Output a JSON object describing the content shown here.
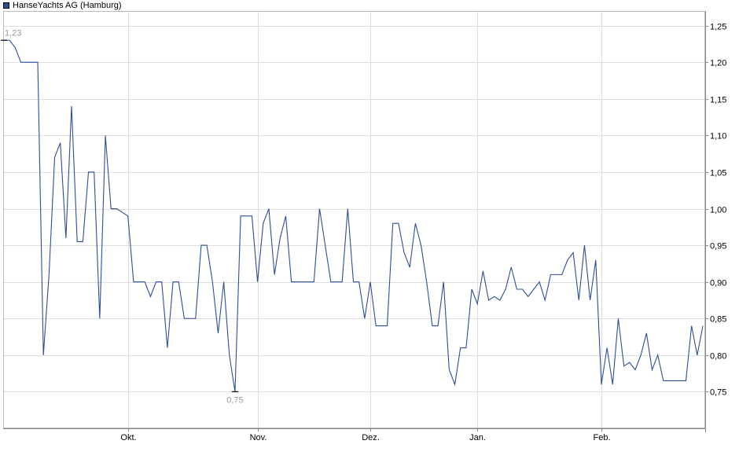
{
  "chart_data": {
    "type": "line",
    "legend": "top-left",
    "grid": true,
    "series": [
      {
        "name": "HanseYachts AG (Hamburg)",
        "color": "#2a4f9a",
        "values": [
          1.23,
          1.23,
          1.22,
          1.2,
          1.2,
          1.2,
          1.2,
          0.8,
          0.91,
          1.07,
          1.09,
          0.96,
          1.14,
          0.955,
          0.955,
          1.05,
          1.05,
          0.85,
          1.1,
          1.0,
          1.0,
          0.995,
          0.99,
          0.9,
          0.9,
          0.9,
          0.88,
          0.9,
          0.9,
          0.81,
          0.9,
          0.9,
          0.85,
          0.85,
          0.85,
          0.95,
          0.95,
          0.9,
          0.83,
          0.9,
          0.8,
          0.75,
          0.99,
          0.99,
          0.99,
          0.9,
          0.98,
          1.0,
          0.91,
          0.96,
          0.99,
          0.9,
          0.9,
          0.9,
          0.9,
          0.9,
          1.0,
          0.95,
          0.9,
          0.9,
          0.9,
          1.0,
          0.9,
          0.9,
          0.85,
          0.9,
          0.84,
          0.84,
          0.84,
          0.98,
          0.98,
          0.94,
          0.92,
          0.98,
          0.95,
          0.9,
          0.84,
          0.84,
          0.9,
          0.78,
          0.76,
          0.81,
          0.81,
          0.89,
          0.87,
          0.915,
          0.875,
          0.88,
          0.875,
          0.89,
          0.92,
          0.89,
          0.89,
          0.88,
          0.89,
          0.9,
          0.875,
          0.91,
          0.91,
          0.91,
          0.93,
          0.94,
          0.875,
          0.95,
          0.875,
          0.93,
          0.76,
          0.81,
          0.76,
          0.85,
          0.785,
          0.79,
          0.78,
          0.8,
          0.83,
          0.78,
          0.8,
          0.765,
          0.765,
          0.765,
          0.765,
          0.765,
          0.84,
          0.8,
          0.84
        ]
      }
    ],
    "y_ticks": [
      0.75,
      0.8,
      0.85,
      0.9,
      0.95,
      1.0,
      1.05,
      1.1,
      1.15,
      1.2,
      1.25
    ],
    "y_tick_labels": [
      "0,75",
      "0,80",
      "0,85",
      "0,90",
      "0,95",
      "1,00",
      "1,05",
      "1,10",
      "1,15",
      "1,20",
      "1,25"
    ],
    "ylim": [
      0.7,
      1.27
    ],
    "x_ticks": [
      {
        "label": "Okt.",
        "index": 22
      },
      {
        "label": "Nov.",
        "index": 45
      },
      {
        "label": "Dez.",
        "index": 65
      },
      {
        "label": "Jan.",
        "index": 84
      },
      {
        "label": "Feb.",
        "index": 106
      }
    ],
    "annotations": [
      {
        "text": "1,23",
        "index": 0,
        "value": 1.23,
        "position": "above"
      },
      {
        "text": "0,75",
        "index": 41,
        "value": 0.75,
        "position": "below"
      }
    ],
    "colors": {
      "grid": "#dddddd",
      "axis": "#888888",
      "tick_text": "#000000",
      "annotation_text": "#999999",
      "marker": "#000000"
    }
  }
}
